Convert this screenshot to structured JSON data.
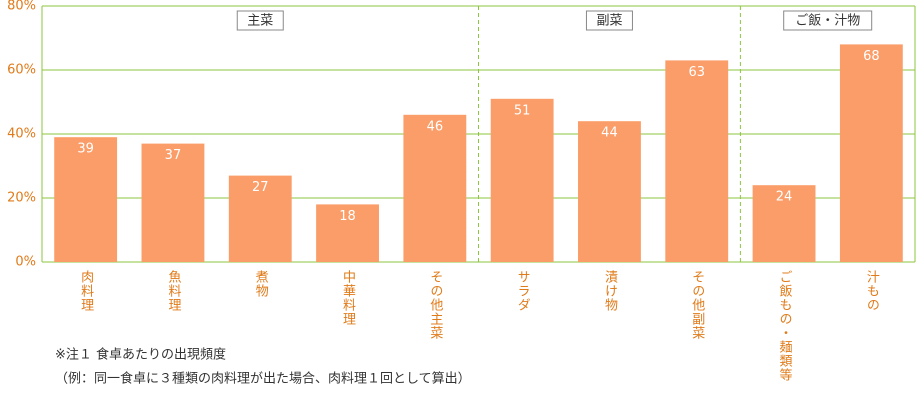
{
  "chart_data": {
    "type": "bar",
    "categories": [
      "肉料理",
      "魚料理",
      "煮物",
      "中華料理",
      "その他主菜",
      "サラダ",
      "漬け物",
      "その他副菜",
      "ご飯もの・麺類等",
      "汁もの"
    ],
    "values": [
      39,
      37,
      27,
      18,
      46,
      51,
      44,
      63,
      24,
      68
    ],
    "color": "#fb9d68",
    "ylim": [
      0,
      80
    ],
    "yticks": [
      {
        "value": 0,
        "label": "0%"
      },
      {
        "value": 20,
        "label": "20%"
      },
      {
        "value": 40,
        "label": "40%"
      },
      {
        "value": 60,
        "label": "60%"
      },
      {
        "value": 80,
        "label": "80%"
      }
    ],
    "grid": true,
    "groups": [
      {
        "label": "主菜",
        "count": 5
      },
      {
        "label": "副菜",
        "count": 3
      },
      {
        "label": "ご飯・汁物",
        "count": 2
      }
    ],
    "notes": [
      "※注１ 食卓あたりの出現頻度",
      "（例：同一食卓に３種類の肉料理が出た場合、肉料理１回として算出）"
    ]
  }
}
